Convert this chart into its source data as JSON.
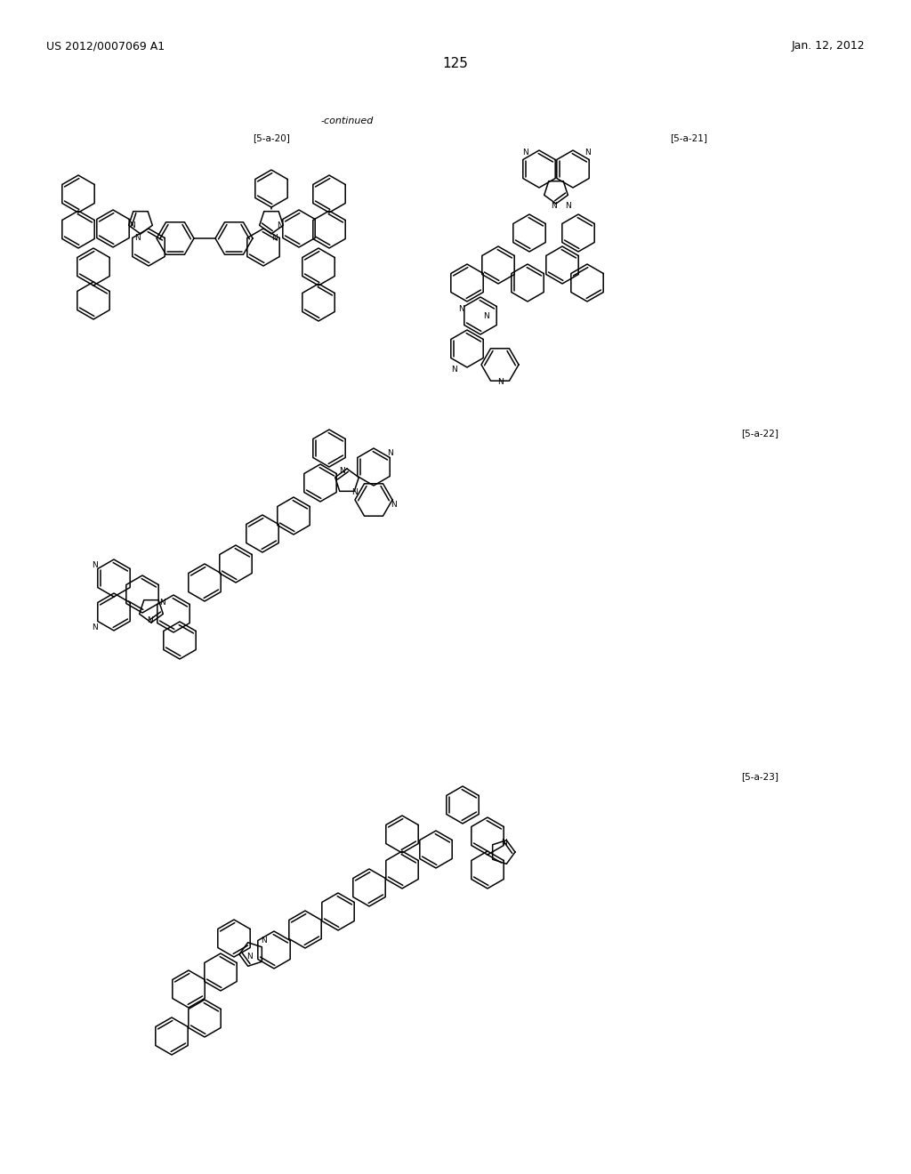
{
  "background_color": "#ffffff",
  "page_number": "125",
  "header_left": "US 2012/0007069 A1",
  "header_right": "Jan. 12, 2012",
  "continued_text": "-continued",
  "label_5a20": "[5-a-20]",
  "label_5a21": "[5-a-21]",
  "label_5a22": "[5-a-22]",
  "label_5a23": "[5-a-23]",
  "fig_width": 10.24,
  "fig_height": 13.2,
  "dpi": 100
}
